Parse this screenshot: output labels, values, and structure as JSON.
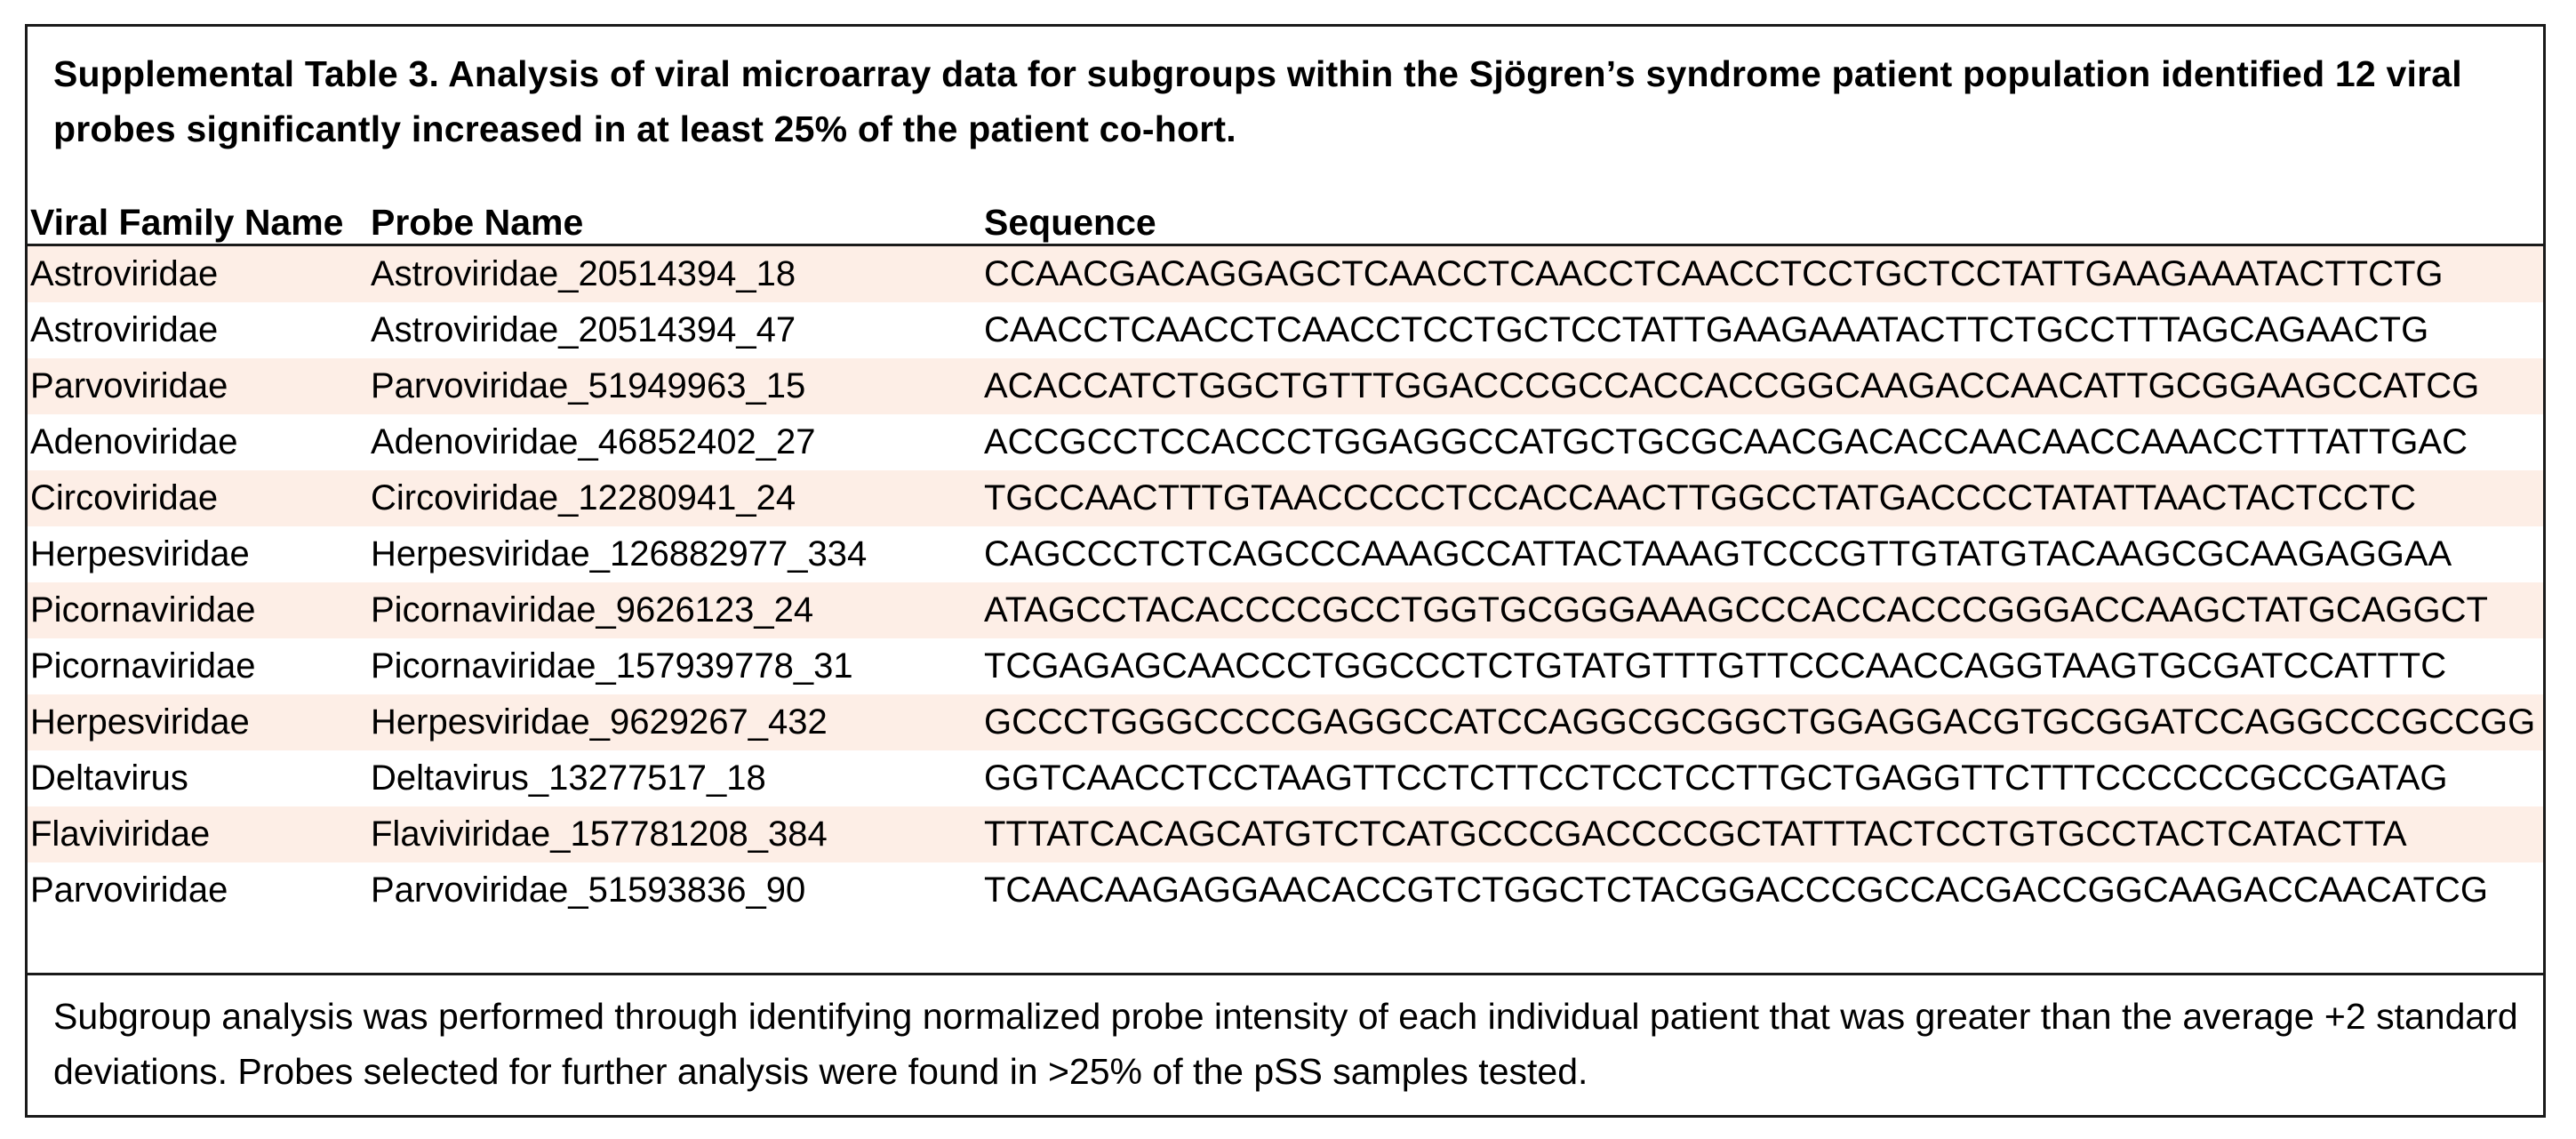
{
  "title": "Supplemental Table 3.  Analysis of viral microarray data for subgroups within the Sjögren’s syndrome patient population identified 12 viral probes significantly increased in at least 25% of the patient co-hort.",
  "columns": [
    "Viral Family Name",
    "Probe Name",
    "Sequence"
  ],
  "rows": [
    [
      "Astroviridae",
      "Astroviridae_20514394_18",
      "CCAACGACAGGAGCTCAACCTCAACCTCAACCTCCTGCTCCTATTGAAGAAATACTTCTG"
    ],
    [
      "Astroviridae",
      "Astroviridae_20514394_47",
      "CAACCTCAACCTCAACCTCCTGCTCCTATTGAAGAAATACTTCTGCCTTTAGCAGAACTG"
    ],
    [
      "Parvoviridae",
      "Parvoviridae_51949963_15",
      "ACACCATCTGGCTGTTTGGACCCGCCACCACCGGCAAGACCAACATTGCGGAAGCCATCG"
    ],
    [
      "Adenoviridae",
      "Adenoviridae_46852402_27",
      "ACCGCCTCCACCCTGGAGGCCATGCTGCGCAACGACACCAACAACCAAACCTTTATTGAC"
    ],
    [
      "Circoviridae",
      "Circoviridae_12280941_24",
      "TGCCAACTTTGTAACCCCCTCCACCAACTTGGCCTATGACCCCTATATTAACTACTCCTC"
    ],
    [
      "Herpesviridae",
      "Herpesviridae_126882977_334",
      "CAGCCCTCTCAGCCCAAAGCCATTACTAAAGTCCCGTTGTATGTACAAGCGCAAGAGGAA"
    ],
    [
      "Picornaviridae",
      "Picornaviridae_9626123_24",
      "ATAGCCTACACCCCGCCTGGTGCGGGAAAGCCCACCACCCGGGACCAAGCTATGCAGGCT"
    ],
    [
      "Picornaviridae",
      "Picornaviridae_157939778_31",
      "TCGAGAGCAACCCTGGCCCTCTGTATGTTTGTTCCCAACCAGGTAAGTGCGATCCATTTC"
    ],
    [
      "Herpesviridae",
      "Herpesviridae_9629267_432",
      "GCCCTGGGCCCCGAGGCCATCCAGGCGCGGCTGGAGGACGTGCGGATCCAGGCCCGCCGG"
    ],
    [
      "Deltavirus",
      "Deltavirus_13277517_18",
      "GGTCAACCTCCTAAGTTCCTCTTCCTCCTCCTTGCTGAGGTTCTTTCCCCCCGCCGATAG"
    ],
    [
      "Flaviviridae",
      "Flaviviridae_157781208_384",
      "TTTATCACAGCATGTCTCATGCCCGACCCCGCTATTTACTCCTGTGCCTACTCATACTTA"
    ],
    [
      "Parvoviridae",
      "Parvoviridae_51593836_90",
      "TCAACAAGAGGAACACCGTCTGGCTCTACGGACCCGCCACGACCGGCAAGACCAACATCG"
    ]
  ],
  "footnote": "Subgroup analysis was performed through identifying normalized probe intensity of each individual patient that was greater than the average +2 standard deviations.  Probes selected for further analysis were found in >25% of the pSS samples tested.",
  "colors": {
    "stripe": "#fdeee6",
    "rule": "#1a1a1a"
  }
}
